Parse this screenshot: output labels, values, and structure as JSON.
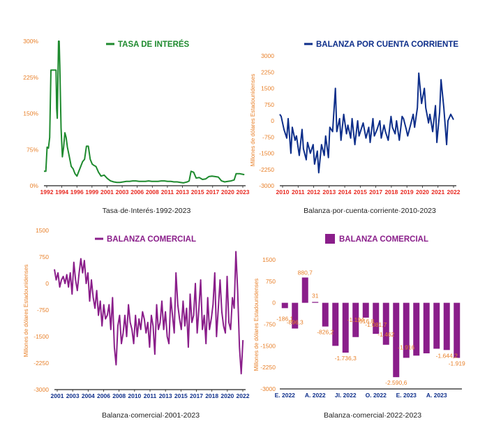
{
  "chart_data": [
    {
      "type": "line",
      "title": "TASA DE INTERÉS",
      "caption": "Tasa·de·Interés·1992-2023",
      "ylabel": "",
      "color": "#1e8a2e",
      "x_tick_color": "#e8271e",
      "yticks": [
        "0%",
        "75%",
        "150%",
        "225%",
        "300%"
      ],
      "ylim": [
        0,
        300
      ],
      "xticks": [
        "1992",
        "1994",
        "1996",
        "1999",
        "2001",
        "2003",
        "2006",
        "2008",
        "2011",
        "2013",
        "2015",
        "2017",
        "2020",
        "2023"
      ],
      "xlim": [
        1992,
        2023.8
      ],
      "series": [
        {
          "x": [
            1992.0,
            1992.3,
            1992.5,
            1992.7,
            1992.9,
            1993.1,
            1993.4,
            1993.7,
            1993.9,
            1994.0,
            1994.1,
            1994.3,
            1994.4,
            1994.5,
            1994.7,
            1994.9,
            1995.1,
            1995.3,
            1995.5,
            1995.7,
            1996.0,
            1996.3,
            1996.6,
            1996.9,
            1997.2,
            1997.5,
            1997.8,
            1998.1,
            1998.4,
            1998.7,
            1999.0,
            1999.3,
            1999.6,
            1999.9,
            2000.2,
            2000.6,
            2001.0,
            2001.5,
            2002.0,
            2002.5,
            2003.0,
            2003.5,
            2004.0,
            2004.5,
            2005.0,
            2005.5,
            2006.0,
            2006.5,
            2007.0,
            2007.5,
            2008.0,
            2008.5,
            2009.0,
            2009.5,
            2010.0,
            2010.5,
            2011.0,
            2011.5,
            2012.0,
            2012.5,
            2013.0,
            2013.5,
            2014.0,
            2014.3,
            2014.6,
            2014.9,
            2015.2,
            2015.6,
            2016.0,
            2016.5,
            2017.0,
            2017.5,
            2018.0,
            2018.5,
            2019.0,
            2019.5,
            2020.0,
            2020.5,
            2021.0,
            2021.5,
            2022.0,
            2022.3,
            2022.6,
            2022.9,
            2023.2,
            2023.6
          ],
          "values": [
            30,
            30,
            80,
            78,
            100,
            240,
            240,
            240,
            240,
            160,
            140,
            300,
            300,
            250,
            120,
            60,
            80,
            110,
            100,
            80,
            60,
            40,
            35,
            25,
            20,
            30,
            40,
            50,
            55,
            82,
            82,
            55,
            45,
            42,
            40,
            28,
            20,
            22,
            15,
            10,
            8,
            7,
            7,
            8,
            9,
            9,
            10,
            10,
            9,
            9,
            9,
            10,
            9,
            9,
            9,
            10,
            10,
            9,
            9,
            8,
            8,
            7,
            6,
            7,
            8,
            10,
            30,
            28,
            16,
            17,
            13,
            14,
            19,
            20,
            19,
            18,
            10,
            8,
            9,
            10,
            12,
            25,
            25,
            25,
            24,
            23
          ]
        }
      ]
    },
    {
      "type": "line",
      "title": "BALANZA POR CUENTA CORRIENTE",
      "caption": "Balanza·por·cuenta·corriente·2010-2023",
      "ylabel": "Millones de dólares Estadounidenses",
      "color": "#0d2e8a",
      "x_tick_color": "#e8271e",
      "yticks": [
        "3000",
        "2250",
        "1500",
        "750",
        "0",
        "-750",
        "-1500",
        "-2250",
        "-3000"
      ],
      "ylim": [
        -3000,
        3000
      ],
      "xticks": [
        "2010",
        "2011",
        "2012",
        "2013",
        "2014",
        "2015",
        "2017",
        "2018",
        "2019",
        "2020",
        "2021",
        "2022"
      ],
      "xlim": [
        2010,
        2022.7
      ],
      "series": [
        {
          "x": [
            2010.0,
            2010.1,
            2010.3,
            2010.5,
            2010.6,
            2010.8,
            2010.9,
            2011.1,
            2011.2,
            2011.4,
            2011.6,
            2011.7,
            2011.9,
            2012.0,
            2012.2,
            2012.4,
            2012.5,
            2012.7,
            2012.8,
            2013.0,
            2013.2,
            2013.3,
            2013.5,
            2013.6,
            2013.8,
            2014.0,
            2014.1,
            2014.3,
            2014.4,
            2014.6,
            2014.8,
            2014.9,
            2015.1,
            2015.2,
            2015.4,
            2015.6,
            2015.7,
            2015.9,
            2016.0,
            2016.2,
            2016.4,
            2016.5,
            2016.7,
            2016.8,
            2017.0,
            2017.2,
            2017.3,
            2017.5,
            2017.6,
            2017.8,
            2018.0,
            2018.1,
            2018.3,
            2018.4,
            2018.6,
            2018.8,
            2018.9,
            2019.1,
            2019.2,
            2019.4,
            2019.6,
            2019.7,
            2019.9,
            2020.0,
            2020.2,
            2020.4,
            2020.5,
            2020.7,
            2020.8,
            2021.0,
            2021.2,
            2021.3,
            2021.5,
            2021.6,
            2021.8,
            2022.0,
            2022.1,
            2022.3,
            2022.5
          ],
          "values": [
            300,
            200,
            -400,
            -800,
            100,
            -1500,
            -300,
            -900,
            -700,
            -1600,
            -400,
            -1300,
            -1800,
            -1000,
            -1500,
            -1100,
            -2000,
            -1400,
            -2400,
            -1100,
            -1600,
            -700,
            -1700,
            -300,
            -500,
            1500,
            -500,
            100,
            -900,
            300,
            -600,
            -200,
            -800,
            100,
            -1100,
            0,
            -700,
            -300,
            -100,
            -800,
            -300,
            -1000,
            100,
            -700,
            -400,
            0,
            -800,
            -200,
            -500,
            -900,
            200,
            -300,
            -600,
            0,
            -900,
            200,
            100,
            -400,
            -700,
            -200,
            300,
            -300,
            600,
            2200,
            800,
            1500,
            600,
            -100,
            300,
            -500,
            700,
            -1000,
            400,
            1900,
            600,
            -1100,
            0,
            300,
            50
          ]
        }
      ]
    },
    {
      "type": "line",
      "title": "BALANZA COMERCIAL",
      "caption": "Balanza·comercial·2001-2023",
      "ylabel": "Millones de dólares Estadounidenses",
      "color": "#8a1e8a",
      "x_tick_color": "#0d2e8a",
      "yticks": [
        "1500",
        "750",
        "0",
        "-750",
        "-1500",
        "-2250",
        "-3000"
      ],
      "ylim": [
        -3000,
        1500
      ],
      "xticks": [
        "2001",
        "2003",
        "2004",
        "2006",
        "2008",
        "2010",
        "2011",
        "2013",
        "2015",
        "2017",
        "2018",
        "2020",
        "2022"
      ],
      "xlim": [
        2001,
        2022.7
      ],
      "series": [
        {
          "x": [
            2001.0,
            2001.2,
            2001.4,
            2001.6,
            2001.8,
            2002.0,
            2002.2,
            2002.4,
            2002.6,
            2002.8,
            2003.0,
            2003.2,
            2003.4,
            2003.6,
            2003.8,
            2004.0,
            2004.2,
            2004.4,
            2004.6,
            2004.8,
            2005.0,
            2005.2,
            2005.4,
            2005.6,
            2005.8,
            2006.0,
            2006.2,
            2006.4,
            2006.6,
            2006.8,
            2007.0,
            2007.2,
            2007.4,
            2007.6,
            2007.8,
            2008.0,
            2008.2,
            2008.4,
            2008.6,
            2008.8,
            2009.0,
            2009.2,
            2009.4,
            2009.6,
            2009.8,
            2010.0,
            2010.2,
            2010.4,
            2010.6,
            2010.8,
            2011.0,
            2011.2,
            2011.4,
            2011.6,
            2011.8,
            2012.0,
            2012.2,
            2012.4,
            2012.6,
            2012.8,
            2013.0,
            2013.2,
            2013.4,
            2013.6,
            2013.8,
            2014.0,
            2014.2,
            2014.4,
            2014.6,
            2014.8,
            2015.0,
            2015.2,
            2015.4,
            2015.6,
            2015.8,
            2016.0,
            2016.2,
            2016.4,
            2016.6,
            2016.8,
            2017.0,
            2017.2,
            2017.4,
            2017.6,
            2017.8,
            2018.0,
            2018.2,
            2018.4,
            2018.6,
            2018.8,
            2019.0,
            2019.2,
            2019.4,
            2019.6,
            2019.8,
            2020.0,
            2020.2,
            2020.4,
            2020.6,
            2020.8,
            2021.0,
            2021.2,
            2021.4,
            2021.6,
            2021.8,
            2022.0,
            2022.2,
            2022.4
          ],
          "values": [
            400,
            100,
            300,
            -100,
            100,
            200,
            0,
            250,
            -100,
            300,
            -300,
            600,
            100,
            -200,
            300,
            700,
            300,
            650,
            0,
            300,
            -500,
            100,
            -400,
            -700,
            -200,
            -900,
            -500,
            -1200,
            -600,
            -1000,
            -900,
            -600,
            -1300,
            -400,
            -1800,
            -2300,
            -1200,
            -900,
            -1700,
            -1400,
            -900,
            -1500,
            -600,
            -1100,
            -1300,
            -1700,
            -900,
            -1500,
            -1000,
            -1300,
            -800,
            -1000,
            -1400,
            -1100,
            -1800,
            -900,
            -1200,
            -2000,
            -600,
            -1300,
            -1100,
            -500,
            -1300,
            -800,
            -1500,
            -1700,
            -400,
            -900,
            -1400,
            300,
            -600,
            -1000,
            -1300,
            -500,
            -1200,
            -700,
            -1800,
            -300,
            -1100,
            -900,
            0,
            -1400,
            -700,
            100,
            -1300,
            -900,
            -1700,
            -400,
            -1300,
            -1000,
            -600,
            300,
            -1500,
            -700,
            100,
            -800,
            -1200,
            -1400,
            200,
            -1100,
            -1300,
            -400,
            -700,
            900,
            -200,
            -1800,
            -2550,
            -1600
          ]
        }
      ]
    },
    {
      "type": "bar",
      "title": "BALANZA COMERCIAL",
      "caption": "Balanza·comercial·2022-2023",
      "ylabel": "Millones de dólares Estadounidenses",
      "color": "#8a1e8a",
      "x_tick_color": "#0d2e8a",
      "yticks": [
        "1500",
        "750",
        "0",
        "-750",
        "-1500",
        "-2250",
        "-3000"
      ],
      "ylim": [
        -3000,
        1500
      ],
      "categories": [
        "E. 2022",
        "",
        "",
        "A. 2022",
        "",
        "",
        "Jl. 2022",
        "",
        "",
        "O. 2022",
        "",
        "",
        "E. 2023",
        "",
        "",
        "A. 2023",
        "",
        ""
      ],
      "x_labels": [
        {
          "label": "E. 2022",
          "index": 0
        },
        {
          "label": "A. 2022",
          "index": 3
        },
        {
          "label": "Jl. 2022",
          "index": 6
        },
        {
          "label": "O. 2022",
          "index": 9
        },
        {
          "label": "E. 2023",
          "index": 12
        },
        {
          "label": "A. 2023",
          "index": 15
        }
      ],
      "values": [
        -186.1,
        -896.3,
        880.7,
        31,
        -826.2,
        -1500,
        -1736.3,
        -1194,
        -516.8,
        -1081.7,
        -1462,
        -2590.6,
        -1916,
        -1840,
        -1760,
        -1600,
        -1644.2,
        -1919
      ],
      "data_labels": [
        {
          "index": 0,
          "text": "-186,1"
        },
        {
          "index": 1,
          "text": "-896,3"
        },
        {
          "index": 2,
          "text": "880,7"
        },
        {
          "index": 3,
          "text": "31"
        },
        {
          "index": 4,
          "text": "-826,2"
        },
        {
          "index": 6,
          "text": "-1.736,3"
        },
        {
          "index": 7,
          "text": "-1.194"
        },
        {
          "index": 8,
          "text": "-516,8"
        },
        {
          "index": 9,
          "text": "-1.081,7"
        },
        {
          "index": 10,
          "text": "-1.462"
        },
        {
          "index": 11,
          "text": "-2.590,6"
        },
        {
          "index": 12,
          "text": "-1.916"
        },
        {
          "index": 16,
          "text": "-1.644,2"
        },
        {
          "index": 17,
          "text": "-1.919"
        }
      ],
      "legend": "legend-box"
    }
  ]
}
